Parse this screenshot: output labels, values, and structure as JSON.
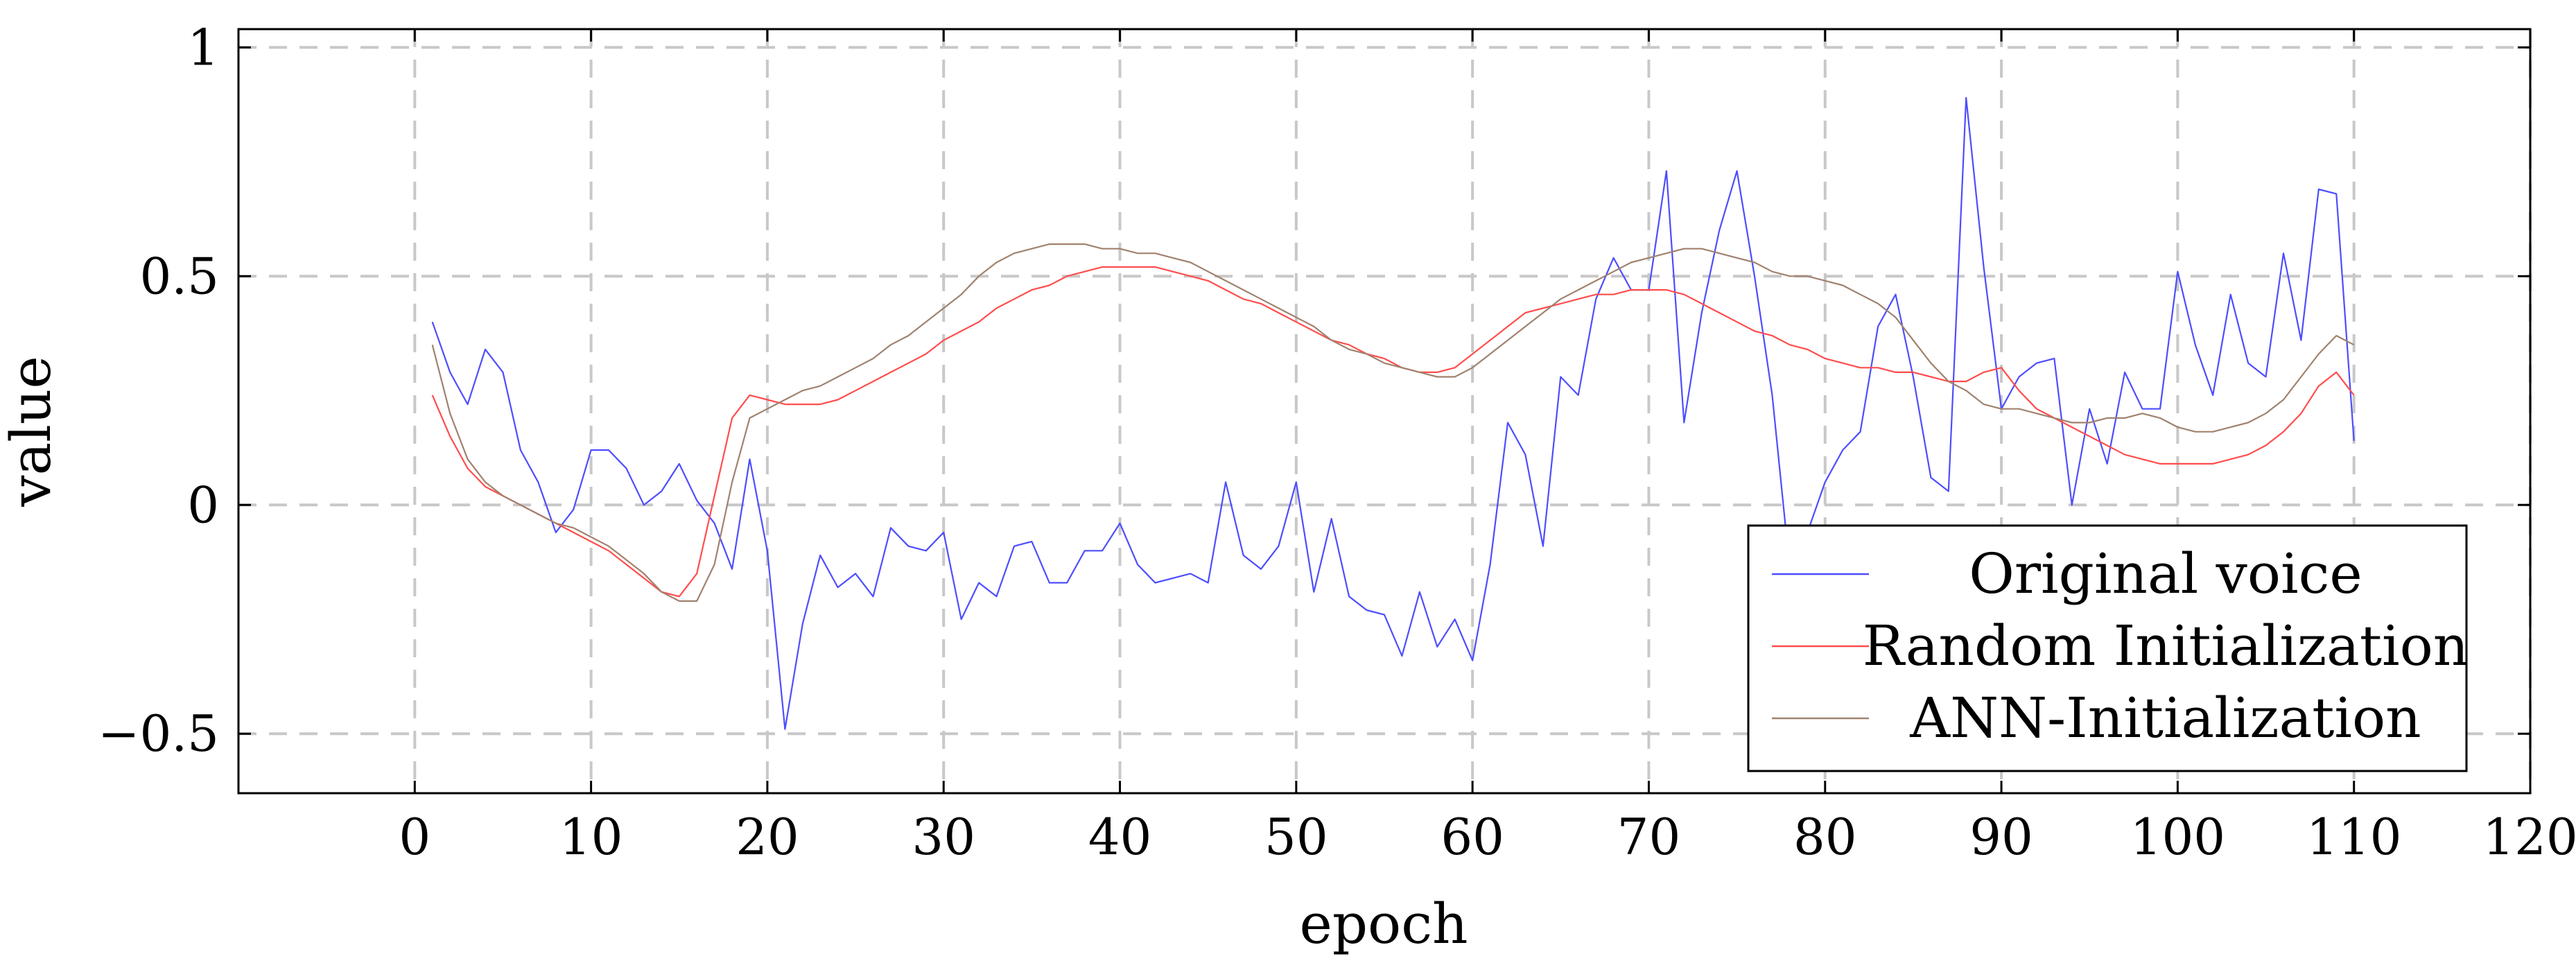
{
  "chart_data": {
    "type": "line",
    "title": "",
    "xlabel": "epoch",
    "ylabel": "value",
    "xlim": [
      -10,
      120
    ],
    "ylim": [
      -0.63,
      1.04
    ],
    "xticks": [
      0,
      10,
      20,
      30,
      40,
      50,
      60,
      70,
      80,
      90,
      100,
      110,
      120
    ],
    "yticks": [
      -0.5,
      0,
      0.5,
      1
    ],
    "xtick_labels": [
      "0",
      "10",
      "20",
      "30",
      "40",
      "50",
      "60",
      "70",
      "80",
      "90",
      "100",
      "110",
      "120"
    ],
    "ytick_labels": [
      "−0.5",
      "0",
      "0.5",
      "1"
    ],
    "grid": true,
    "legend_position": "bottom-right",
    "series": [
      {
        "name": "Original voice",
        "color": "#4d4dff",
        "x": [
          1,
          2,
          3,
          4,
          5,
          6,
          7,
          8,
          9,
          10,
          11,
          12,
          13,
          14,
          15,
          16,
          17,
          18,
          19,
          20,
          21,
          22,
          23,
          24,
          25,
          26,
          27,
          28,
          29,
          30,
          31,
          32,
          33,
          34,
          35,
          36,
          37,
          38,
          39,
          40,
          41,
          42,
          43,
          44,
          45,
          46,
          47,
          48,
          49,
          50,
          51,
          52,
          53,
          54,
          55,
          56,
          57,
          58,
          59,
          60,
          61,
          62,
          63,
          64,
          65,
          66,
          67,
          68,
          69,
          70,
          71,
          72,
          73,
          74,
          75,
          76,
          77,
          78,
          79,
          80,
          81,
          82,
          83,
          84,
          85,
          86,
          87,
          88,
          89,
          90,
          91,
          92,
          93,
          94,
          95,
          96,
          97,
          98,
          99,
          100,
          101,
          102,
          103,
          104,
          105,
          106,
          107,
          108,
          109,
          110
        ],
        "y": [
          0.4,
          0.29,
          0.22,
          0.34,
          0.29,
          0.12,
          0.05,
          -0.06,
          -0.01,
          0.12,
          0.12,
          0.08,
          0.0,
          0.03,
          0.09,
          0.01,
          -0.04,
          -0.14,
          0.1,
          -0.1,
          -0.49,
          -0.26,
          -0.11,
          -0.18,
          -0.15,
          -0.2,
          -0.05,
          -0.09,
          -0.1,
          -0.06,
          -0.25,
          -0.17,
          -0.2,
          -0.09,
          -0.08,
          -0.17,
          -0.17,
          -0.1,
          -0.1,
          -0.04,
          -0.13,
          -0.17,
          -0.16,
          -0.15,
          -0.17,
          0.05,
          -0.11,
          -0.14,
          -0.09,
          0.05,
          -0.19,
          -0.03,
          -0.2,
          -0.23,
          -0.24,
          -0.33,
          -0.19,
          -0.31,
          -0.25,
          -0.34,
          -0.13,
          0.18,
          0.11,
          -0.09,
          0.28,
          0.24,
          0.45,
          0.54,
          0.47,
          0.47,
          0.73,
          0.18,
          0.42,
          0.6,
          0.73,
          0.5,
          0.24,
          -0.14,
          -0.06,
          0.05,
          0.12,
          0.16,
          0.39,
          0.46,
          0.28,
          0.06,
          0.03,
          0.89,
          0.52,
          0.21,
          0.28,
          0.31,
          0.32,
          0.0,
          0.21,
          0.09,
          0.29,
          0.21,
          0.21,
          0.51,
          0.35,
          0.24,
          0.46,
          0.31,
          0.28,
          0.55,
          0.36,
          0.69,
          0.68,
          0.14
        ]
      },
      {
        "name": "Random Initialization",
        "color": "#ff4d4d",
        "x": [
          1,
          2,
          3,
          4,
          5,
          6,
          7,
          8,
          9,
          10,
          11,
          12,
          13,
          14,
          15,
          16,
          17,
          18,
          19,
          20,
          21,
          22,
          23,
          24,
          25,
          26,
          27,
          28,
          29,
          30,
          31,
          32,
          33,
          34,
          35,
          36,
          37,
          38,
          39,
          40,
          41,
          42,
          43,
          44,
          45,
          46,
          47,
          48,
          49,
          50,
          51,
          52,
          53,
          54,
          55,
          56,
          57,
          58,
          59,
          60,
          61,
          62,
          63,
          64,
          65,
          66,
          67,
          68,
          69,
          70,
          71,
          72,
          73,
          74,
          75,
          76,
          77,
          78,
          79,
          80,
          81,
          82,
          83,
          84,
          85,
          86,
          87,
          88,
          89,
          90,
          91,
          92,
          93,
          94,
          95,
          96,
          97,
          98,
          99,
          100,
          101,
          102,
          103,
          104,
          105,
          106,
          107,
          108,
          109,
          110
        ],
        "y": [
          0.24,
          0.15,
          0.08,
          0.04,
          0.02,
          0.0,
          -0.02,
          -0.04,
          -0.06,
          -0.08,
          -0.1,
          -0.13,
          -0.16,
          -0.19,
          -0.2,
          -0.15,
          0.02,
          0.19,
          0.24,
          0.23,
          0.22,
          0.22,
          0.22,
          0.23,
          0.25,
          0.27,
          0.29,
          0.31,
          0.33,
          0.36,
          0.38,
          0.4,
          0.43,
          0.45,
          0.47,
          0.48,
          0.5,
          0.51,
          0.52,
          0.52,
          0.52,
          0.52,
          0.51,
          0.5,
          0.49,
          0.47,
          0.45,
          0.44,
          0.42,
          0.4,
          0.38,
          0.36,
          0.35,
          0.33,
          0.32,
          0.3,
          0.29,
          0.29,
          0.3,
          0.33,
          0.36,
          0.39,
          0.42,
          0.43,
          0.44,
          0.45,
          0.46,
          0.46,
          0.47,
          0.47,
          0.47,
          0.46,
          0.44,
          0.42,
          0.4,
          0.38,
          0.37,
          0.35,
          0.34,
          0.32,
          0.31,
          0.3,
          0.3,
          0.29,
          0.29,
          0.28,
          0.27,
          0.27,
          0.29,
          0.3,
          0.25,
          0.21,
          0.19,
          0.17,
          0.15,
          0.13,
          0.11,
          0.1,
          0.09,
          0.09,
          0.09,
          0.09,
          0.1,
          0.11,
          0.13,
          0.16,
          0.2,
          0.26,
          0.29,
          0.24
        ]
      },
      {
        "name": "ANN-Initialization",
        "color": "#a0826e",
        "x": [
          1,
          2,
          3,
          4,
          5,
          6,
          7,
          8,
          9,
          10,
          11,
          12,
          13,
          14,
          15,
          16,
          17,
          18,
          19,
          20,
          21,
          22,
          23,
          24,
          25,
          26,
          27,
          28,
          29,
          30,
          31,
          32,
          33,
          34,
          35,
          36,
          37,
          38,
          39,
          40,
          41,
          42,
          43,
          44,
          45,
          46,
          47,
          48,
          49,
          50,
          51,
          52,
          53,
          54,
          55,
          56,
          57,
          58,
          59,
          60,
          61,
          62,
          63,
          64,
          65,
          66,
          67,
          68,
          69,
          70,
          71,
          72,
          73,
          74,
          75,
          76,
          77,
          78,
          79,
          80,
          81,
          82,
          83,
          84,
          85,
          86,
          87,
          88,
          89,
          90,
          91,
          92,
          93,
          94,
          95,
          96,
          97,
          98,
          99,
          100,
          101,
          102,
          103,
          104,
          105,
          106,
          107,
          108,
          109,
          110
        ],
        "y": [
          0.35,
          0.2,
          0.1,
          0.05,
          0.02,
          0.0,
          -0.02,
          -0.04,
          -0.05,
          -0.07,
          -0.09,
          -0.12,
          -0.15,
          -0.19,
          -0.21,
          -0.21,
          -0.13,
          0.05,
          0.19,
          0.21,
          0.23,
          0.25,
          0.26,
          0.28,
          0.3,
          0.32,
          0.35,
          0.37,
          0.4,
          0.43,
          0.46,
          0.5,
          0.53,
          0.55,
          0.56,
          0.57,
          0.57,
          0.57,
          0.56,
          0.56,
          0.55,
          0.55,
          0.54,
          0.53,
          0.51,
          0.49,
          0.47,
          0.45,
          0.43,
          0.41,
          0.39,
          0.36,
          0.34,
          0.33,
          0.31,
          0.3,
          0.29,
          0.28,
          0.28,
          0.3,
          0.33,
          0.36,
          0.39,
          0.42,
          0.45,
          0.47,
          0.49,
          0.51,
          0.53,
          0.54,
          0.55,
          0.56,
          0.56,
          0.55,
          0.54,
          0.53,
          0.51,
          0.5,
          0.5,
          0.49,
          0.48,
          0.46,
          0.44,
          0.41,
          0.36,
          0.31,
          0.27,
          0.25,
          0.22,
          0.21,
          0.21,
          0.2,
          0.19,
          0.18,
          0.18,
          0.19,
          0.19,
          0.2,
          0.19,
          0.17,
          0.16,
          0.16,
          0.17,
          0.18,
          0.2,
          0.23,
          0.28,
          0.33,
          0.37,
          0.35
        ]
      }
    ]
  }
}
